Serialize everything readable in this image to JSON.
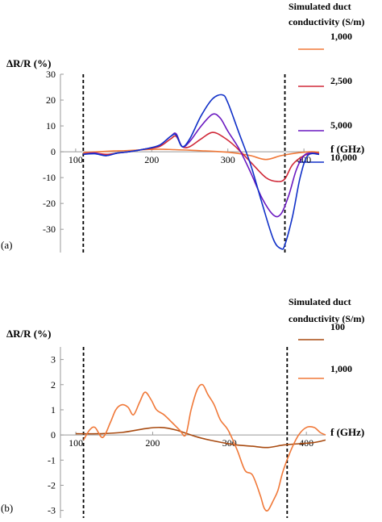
{
  "chart_data": [
    {
      "panel": "(a)",
      "type": "line",
      "xlabel": "f (GHz)",
      "ylabel": "ΔR/R (%)",
      "xlim": [
        80,
        420
      ],
      "ylim": [
        -39,
        30
      ],
      "x_ticks": [
        100,
        200,
        300,
        400
      ],
      "y_ticks": [
        -30,
        -20,
        -10,
        0,
        10,
        20,
        30
      ],
      "vlines": [
        110,
        375
      ],
      "legend": {
        "title_line1": "Simulated duct",
        "title_line2": "conductivity (S/m)",
        "placement": "top-right"
      },
      "series": [
        {
          "name": "1,000",
          "color": "#f07838",
          "x": [
            110,
            130,
            150,
            170,
            190,
            210,
            230,
            250,
            270,
            290,
            310,
            330,
            350,
            370,
            390,
            410,
            420
          ],
          "y": [
            -0.3,
            0.0,
            0.3,
            0.5,
            0.8,
            1.0,
            0.8,
            0.6,
            0.3,
            0.0,
            -0.5,
            -1.5,
            -3.0,
            -1.5,
            -0.5,
            0.0,
            -0.3
          ]
        },
        {
          "name": "2,500",
          "color": "#d02838",
          "x": [
            110,
            125,
            140,
            155,
            170,
            190,
            210,
            225,
            232,
            240,
            250,
            265,
            280,
            295,
            310,
            330,
            350,
            365,
            375,
            385,
            400,
            415,
            420
          ],
          "y": [
            -0.8,
            -0.5,
            -1.0,
            -0.5,
            0.0,
            1.0,
            2.0,
            5.0,
            6.0,
            2.0,
            2.0,
            5.0,
            7.5,
            5.5,
            2.0,
            -4.0,
            -10.0,
            -11.5,
            -10.5,
            -5.0,
            -1.5,
            -0.5,
            -0.8
          ]
        },
        {
          "name": "5,000",
          "color": "#6a18c0",
          "x": [
            110,
            125,
            140,
            155,
            170,
            190,
            210,
            225,
            232,
            240,
            250,
            265,
            280,
            290,
            300,
            315,
            330,
            345,
            360,
            370,
            380,
            390,
            400,
            410,
            420
          ],
          "y": [
            -1.0,
            -0.5,
            -1.5,
            -0.5,
            0.0,
            1.0,
            2.5,
            6.0,
            7.0,
            2.0,
            4.0,
            10.0,
            14.5,
            13.0,
            8.0,
            1.0,
            -8.0,
            -18.0,
            -24.5,
            -24.0,
            -17.0,
            -7.0,
            -1.5,
            -0.5,
            -1.0
          ]
        },
        {
          "name": "10,000",
          "color": "#1030c8",
          "x": [
            110,
            125,
            140,
            155,
            170,
            190,
            210,
            225,
            232,
            240,
            250,
            265,
            280,
            293,
            300,
            315,
            330,
            345,
            360,
            370,
            375,
            385,
            395,
            405,
            420
          ],
          "y": [
            -1.0,
            -0.8,
            -1.5,
            -0.5,
            0.0,
            1.0,
            2.5,
            6.0,
            6.5,
            2.0,
            5.0,
            14.0,
            20.5,
            22.0,
            19.0,
            7.0,
            -5.0,
            -20.0,
            -34.0,
            -37.5,
            -36.0,
            -25.0,
            -10.0,
            -1.5,
            -1.0
          ]
        }
      ]
    },
    {
      "panel": "(b)",
      "type": "line",
      "xlabel": "f (GHz)",
      "ylabel": "ΔR/R (%)",
      "xlim": [
        80,
        425
      ],
      "ylim": [
        -3.3,
        3.5
      ],
      "x_ticks": [
        100,
        200,
        300,
        400
      ],
      "y_ticks": [
        -3,
        -2,
        -1,
        0,
        1,
        2,
        3
      ],
      "vlines": [
        110,
        375
      ],
      "legend": {
        "title_line1": "Simulated duct",
        "title_line2": "conductivity (S/m)",
        "placement": "top-right"
      },
      "series": [
        {
          "name": "100",
          "color": "#a84a10",
          "x": [
            100,
            130,
            160,
            190,
            210,
            230,
            260,
            290,
            310,
            330,
            350,
            370,
            390,
            410,
            425
          ],
          "y": [
            0.05,
            0.05,
            0.1,
            0.25,
            0.3,
            0.2,
            -0.1,
            -0.3,
            -0.4,
            -0.45,
            -0.5,
            -0.4,
            -0.35,
            -0.3,
            -0.2
          ]
        },
        {
          "name": "1,000",
          "color": "#f07838",
          "x": [
            110,
            118,
            125,
            135,
            145,
            152,
            160,
            168,
            175,
            183,
            190,
            198,
            205,
            215,
            225,
            235,
            243,
            250,
            258,
            265,
            272,
            280,
            288,
            298,
            310,
            320,
            330,
            340,
            345,
            350,
            357,
            363,
            370,
            380,
            390,
            400,
            410,
            418,
            425
          ],
          "y": [
            -0.2,
            0.2,
            0.3,
            -0.1,
            0.5,
            1.0,
            1.2,
            1.1,
            0.8,
            1.3,
            1.7,
            1.4,
            1.0,
            0.8,
            0.5,
            0.2,
            0.0,
            1.0,
            1.8,
            2.0,
            1.6,
            1.2,
            0.6,
            0.2,
            -0.6,
            -1.4,
            -1.6,
            -2.4,
            -2.9,
            -3.0,
            -2.6,
            -2.2,
            -1.4,
            -0.6,
            0.0,
            0.3,
            0.3,
            0.1,
            0.0
          ]
        }
      ]
    }
  ]
}
